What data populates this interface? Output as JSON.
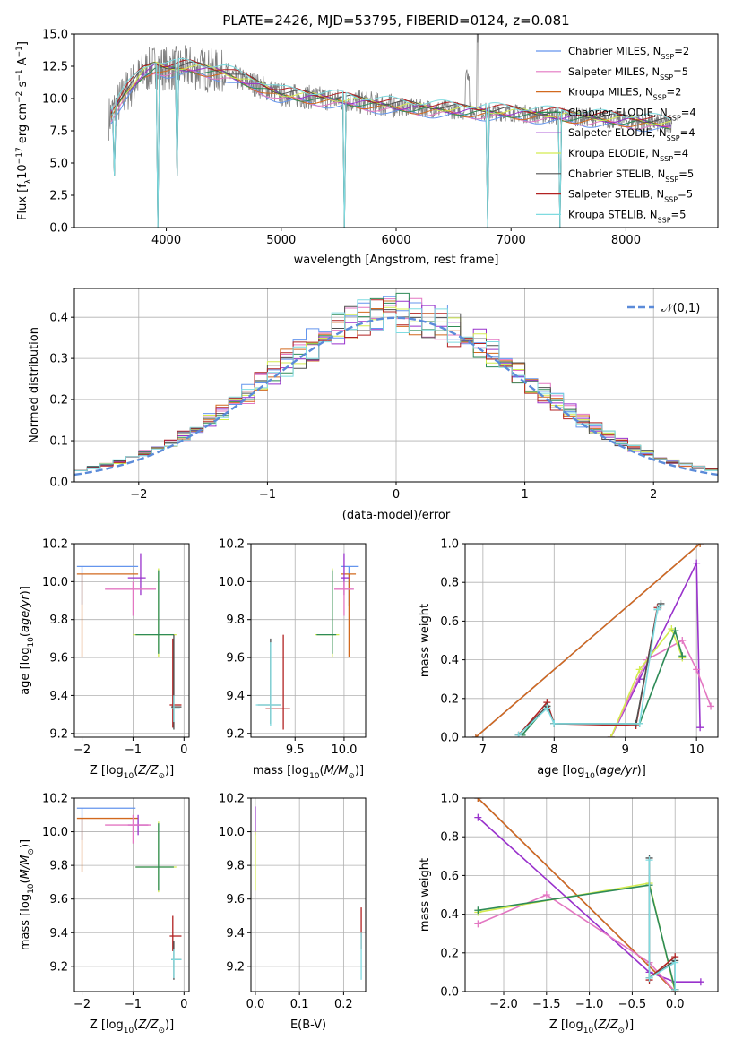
{
  "figure_title": "PLATE=2426, MJD=53795, FIBERID=0124, z=0.081",
  "series_styles": [
    {
      "name": "Chabrier MILES, N_SSP=2",
      "color": "#6495ed"
    },
    {
      "name": "Salpeter MILES, N_SSP=5",
      "color": "#e377c2"
    },
    {
      "name": "Kroupa MILES, N_SSP=2",
      "color": "#d2691e"
    },
    {
      "name": "Chabrier ELODIE, N_SSP=4",
      "color": "#2e8b57"
    },
    {
      "name": "Salpeter ELODIE, N_SSP=4",
      "color": "#9932cc"
    },
    {
      "name": "Kroupa ELODIE, N_SSP=4",
      "color": "#d4ec50"
    },
    {
      "name": "Chabrier STELIB, N_SSP=5",
      "color": "#505050"
    },
    {
      "name": "Salpeter STELIB, N_SSP=5",
      "color": "#b22222"
    },
    {
      "name": "Kroupa STELIB, N_SSP=5",
      "color": "#7fdbe0"
    }
  ],
  "data_color": "#808080",
  "chart_data": [
    {
      "type": "line",
      "title": "PLATE=2426, MJD=53795, FIBERID=0124, z=0.081",
      "xlabel": "wavelength [Angstrom, rest frame]",
      "ylabel": "Flux [f_λ 10^-17 erg cm^-2 s^-1 A^-1]",
      "xlim": [
        3200,
        8800
      ],
      "ylim": [
        0,
        15
      ],
      "xticks": [
        4000,
        5000,
        6000,
        7000,
        8000
      ],
      "yticks": [
        0.0,
        2.5,
        5.0,
        7.5,
        10.0,
        12.5,
        15.0
      ],
      "legend_position": "right",
      "legend": [
        "Chabrier MILES, N_SSP=2",
        "Salpeter MILES, N_SSP=5",
        "Kroupa MILES, N_SSP=2",
        "Chabrier ELODIE, N_SSP=4",
        "Salpeter ELODIE, N_SSP=4",
        "Kroupa ELODIE, N_SSP=4",
        "Chabrier STELIB, N_SSP=5",
        "Salpeter STELIB, N_SSP=5",
        "Kroupa STELIB, N_SSP=5"
      ],
      "continuum": {
        "x": [
          3500,
          3650,
          3800,
          3900,
          4000,
          4200,
          4500,
          4800,
          5000,
          5500,
          6000,
          6500,
          7000,
          7500,
          8000,
          8400
        ],
        "y": [
          8.5,
          10.5,
          12.0,
          12.5,
          12.3,
          12.4,
          12.0,
          11.0,
          10.3,
          9.9,
          9.4,
          9.1,
          8.9,
          8.6,
          8.3,
          8.0
        ]
      }
    },
    {
      "type": "line",
      "xlabel": "(data-model)/error",
      "ylabel": "Normed distribution",
      "xlim": [
        -2.5,
        2.5
      ],
      "ylim": [
        0,
        0.47
      ],
      "xticks": [
        -2,
        -1,
        0,
        1,
        2
      ],
      "yticks": [
        0.0,
        0.1,
        0.2,
        0.3,
        0.4
      ],
      "legend": [
        "𝒩(0,1)"
      ],
      "legend_position": "top-right",
      "reference_curve": {
        "name": "𝒩(0,1)",
        "mean": 0,
        "sigma": 1,
        "style": "dashed",
        "color": "#5b8bd9"
      },
      "bins": {
        "min": -2.5,
        "max": 2.5,
        "width": 0.1
      }
    },
    {
      "type": "scatter",
      "xlabel": "Z [log10(Z/Z⊙)]",
      "ylabel": "age  [log10(age/yr)]",
      "xlim": [
        -2.15,
        0.1
      ],
      "ylim": [
        9.18,
        10.2
      ],
      "xticks": [
        -2,
        -1,
        0
      ],
      "yticks": [
        9.2,
        9.4,
        9.6,
        9.8,
        10.0,
        10.2
      ],
      "points": [
        {
          "s": 0,
          "x": -2.0,
          "y": 10.08,
          "ex": [
            -2.1,
            -0.9
          ],
          "ey": [
            9.88,
            10.08
          ]
        },
        {
          "s": 2,
          "x": -2.0,
          "y": 10.04,
          "ex": [
            -2.1,
            -0.9
          ],
          "ey": [
            9.6,
            10.04
          ]
        },
        {
          "s": 4,
          "x": -0.85,
          "y": 10.02,
          "ex": [
            -1.1,
            -0.75
          ],
          "ey": [
            9.93,
            10.15
          ]
        },
        {
          "s": 1,
          "x": -1.0,
          "y": 9.96,
          "ex": [
            -1.55,
            -0.55
          ],
          "ey": [
            9.82,
            10.0
          ]
        },
        {
          "s": 5,
          "x": -0.5,
          "y": 9.72,
          "ex": [
            -1.0,
            -0.15
          ],
          "ey": [
            9.6,
            10.07
          ]
        },
        {
          "s": 3,
          "x": -0.5,
          "y": 9.72,
          "ex": [
            -0.95,
            -0.2
          ],
          "ey": [
            9.62,
            10.06
          ]
        },
        {
          "s": 7,
          "x": -0.22,
          "y": 9.35,
          "ex": [
            -0.28,
            -0.05
          ],
          "ey": [
            9.23,
            9.7
          ]
        },
        {
          "s": 6,
          "x": -0.2,
          "y": 9.34,
          "ex": [
            -0.25,
            -0.05
          ],
          "ey": [
            9.22,
            9.72
          ]
        },
        {
          "s": 8,
          "x": -0.2,
          "y": 9.33,
          "ex": [
            -0.25,
            -0.08
          ],
          "ey": [
            9.26,
            9.4
          ]
        }
      ]
    },
    {
      "type": "scatter",
      "xlabel": "mass [log10(M/M⊙)]",
      "ylabel": "",
      "xlim": [
        9.05,
        10.22
      ],
      "ylim": [
        9.18,
        10.2
      ],
      "xticks": [
        9.5,
        10.0
      ],
      "yticks": [
        9.2,
        9.4,
        9.6,
        9.8,
        10.0,
        10.2
      ],
      "points": [
        {
          "s": 0,
          "x": 10.05,
          "y": 10.08,
          "ex": [
            9.97,
            10.15
          ],
          "ey": [
            9.87,
            10.08
          ]
        },
        {
          "s": 2,
          "x": 10.05,
          "y": 10.04,
          "ex": [
            9.97,
            10.12
          ],
          "ey": [
            9.6,
            10.04
          ]
        },
        {
          "s": 4,
          "x": 10.0,
          "y": 10.02,
          "ex": [
            9.97,
            10.05
          ],
          "ey": [
            9.93,
            10.15
          ]
        },
        {
          "s": 1,
          "x": 10.0,
          "y": 9.96,
          "ex": [
            9.9,
            10.1
          ],
          "ey": [
            9.82,
            10.0
          ]
        },
        {
          "s": 5,
          "x": 9.88,
          "y": 9.72,
          "ex": [
            9.7,
            9.95
          ],
          "ey": [
            9.6,
            10.07
          ]
        },
        {
          "s": 3,
          "x": 9.88,
          "y": 9.72,
          "ex": [
            9.72,
            9.92
          ],
          "ey": [
            9.62,
            10.06
          ]
        },
        {
          "s": 7,
          "x": 9.38,
          "y": 9.33,
          "ex": [
            9.2,
            9.45
          ],
          "ey": [
            9.22,
            9.72
          ]
        },
        {
          "s": 6,
          "x": 9.25,
          "y": 9.35,
          "ex": [
            9.12,
            9.35
          ],
          "ey": [
            9.25,
            9.7
          ]
        },
        {
          "s": 8,
          "x": 9.25,
          "y": 9.35,
          "ex": [
            9.1,
            9.35
          ],
          "ey": [
            9.24,
            9.68
          ]
        }
      ]
    },
    {
      "type": "line",
      "xlabel": "age  [log10(age/yr)]",
      "ylabel": "mass weight",
      "xlim": [
        6.75,
        10.3
      ],
      "ylim": [
        0,
        1.0
      ],
      "xticks": [
        7,
        8,
        9,
        10
      ],
      "yticks": [
        0.0,
        0.2,
        0.4,
        0.6,
        0.8,
        1.0
      ],
      "series": [
        {
          "s": 0,
          "x": [
            6.9,
            10.05
          ],
          "y": [
            0.0,
            1.0
          ]
        },
        {
          "s": 2,
          "x": [
            6.9,
            10.05
          ],
          "y": [
            0.0,
            1.0
          ]
        },
        {
          "s": 4,
          "x": [
            8.8,
            9.2,
            10.0,
            10.05
          ],
          "y": [
            0.0,
            0.3,
            0.9,
            0.05
          ]
        },
        {
          "s": 1,
          "x": [
            8.8,
            9.3,
            9.8,
            10.0,
            10.2
          ],
          "y": [
            0.0,
            0.4,
            0.5,
            0.35,
            0.16
          ]
        },
        {
          "s": 5,
          "x": [
            8.8,
            9.2,
            9.65,
            9.8
          ],
          "y": [
            0.0,
            0.35,
            0.56,
            0.41
          ]
        },
        {
          "s": 3,
          "x": [
            7.55,
            7.9,
            8.0,
            9.2,
            9.7,
            9.8
          ],
          "y": [
            0.01,
            0.16,
            0.07,
            0.07,
            0.55,
            0.42
          ]
        },
        {
          "s": 7,
          "x": [
            7.5,
            7.9,
            8.0,
            9.15,
            9.45,
            9.5
          ],
          "y": [
            0.01,
            0.18,
            0.07,
            0.06,
            0.67,
            0.68
          ]
        },
        {
          "s": 6,
          "x": [
            7.5,
            7.9,
            8.0,
            9.15,
            9.45,
            9.5
          ],
          "y": [
            0.01,
            0.16,
            0.07,
            0.07,
            0.66,
            0.69
          ]
        },
        {
          "s": 8,
          "x": [
            7.5,
            7.9,
            8.0,
            9.2,
            9.45,
            9.5
          ],
          "y": [
            0.01,
            0.15,
            0.07,
            0.07,
            0.66,
            0.68
          ]
        }
      ]
    },
    {
      "type": "scatter",
      "xlabel": "Z [log10(Z/Z⊙)]",
      "ylabel": "mass [log10(M/M⊙)]",
      "xlim": [
        -2.15,
        0.1
      ],
      "ylim": [
        9.05,
        10.2
      ],
      "xticks": [
        -2,
        -1,
        0
      ],
      "yticks": [
        9.2,
        9.4,
        9.6,
        9.8,
        10.0,
        10.2
      ],
      "points": [
        {
          "s": 0,
          "x": -2.0,
          "y": 10.14,
          "ex": [
            -2.1,
            -0.95
          ],
          "ey": [
            9.95,
            10.14
          ]
        },
        {
          "s": 2,
          "x": -2.0,
          "y": 10.08,
          "ex": [
            -2.1,
            -0.9
          ],
          "ey": [
            9.76,
            10.08
          ]
        },
        {
          "s": 4,
          "x": -0.9,
          "y": 10.04,
          "ex": [
            -1.1,
            -0.7
          ],
          "ey": [
            9.98,
            10.1
          ]
        },
        {
          "s": 1,
          "x": -1.0,
          "y": 10.04,
          "ex": [
            -1.55,
            -0.65
          ],
          "ey": [
            9.93,
            10.1
          ]
        },
        {
          "s": 5,
          "x": -0.5,
          "y": 9.79,
          "ex": [
            -0.95,
            -0.15
          ],
          "ey": [
            9.64,
            10.06
          ]
        },
        {
          "s": 3,
          "x": -0.5,
          "y": 9.79,
          "ex": [
            -0.95,
            -0.2
          ],
          "ey": [
            9.65,
            10.05
          ]
        },
        {
          "s": 7,
          "x": -0.22,
          "y": 9.38,
          "ex": [
            -0.28,
            -0.05
          ],
          "ey": [
            9.29,
            9.5
          ]
        },
        {
          "s": 6,
          "x": -0.2,
          "y": 9.24,
          "ex": [
            -0.25,
            -0.05
          ],
          "ey": [
            9.12,
            9.35
          ]
        },
        {
          "s": 8,
          "x": -0.2,
          "y": 9.24,
          "ex": [
            -0.25,
            -0.05
          ],
          "ey": [
            9.13,
            9.3
          ]
        }
      ]
    },
    {
      "type": "scatter",
      "xlabel": "E(B-V)",
      "ylabel": "",
      "xlim": [
        -0.01,
        0.25
      ],
      "ylim": [
        9.05,
        10.2
      ],
      "xticks": [
        0.0,
        0.1,
        0.2
      ],
      "yticks": [
        9.2,
        9.4,
        9.6,
        9.8,
        10.0,
        10.2
      ],
      "points": [
        {
          "s": 4,
          "x": 0.0,
          "y": 10.05,
          "ex": [
            0.0,
            0.0
          ],
          "ey": [
            9.98,
            10.15
          ]
        },
        {
          "s": 5,
          "x": 0.0,
          "y": 9.8,
          "ex": [
            0.0,
            0.0
          ],
          "ey": [
            9.65,
            10.0
          ]
        },
        {
          "s": 7,
          "x": 0.24,
          "y": 9.4,
          "ex": [
            0.24,
            0.24
          ],
          "ey": [
            9.3,
            9.55
          ]
        },
        {
          "s": 8,
          "x": 0.24,
          "y": 9.25,
          "ex": [
            0.24,
            0.24
          ],
          "ey": [
            9.12,
            9.4
          ]
        }
      ]
    },
    {
      "type": "line",
      "xlabel": "Z [log10(Z/Z⊙)]",
      "ylabel": "mass weight",
      "xlim": [
        -2.45,
        0.5
      ],
      "ylim": [
        0,
        1.0
      ],
      "xticks": [
        -2.0,
        -1.5,
        -1.0,
        -0.5,
        0.0
      ],
      "yticks": [
        0.0,
        0.2,
        0.4,
        0.6,
        0.8,
        1.0
      ],
      "series": [
        {
          "s": 0,
          "x": [
            -2.3,
            0.0
          ],
          "y": [
            1.0,
            0.0
          ]
        },
        {
          "s": 2,
          "x": [
            -2.3,
            0.0
          ],
          "y": [
            1.0,
            0.0
          ]
        },
        {
          "s": 4,
          "x": [
            -2.3,
            -0.3,
            0.0,
            0.3
          ],
          "y": [
            0.9,
            0.1,
            0.05,
            0.05
          ]
        },
        {
          "s": 1,
          "x": [
            -2.3,
            -1.5,
            -0.3,
            0.0
          ],
          "y": [
            0.35,
            0.5,
            0.15,
            0.0
          ]
        },
        {
          "s": 5,
          "x": [
            -2.3,
            -0.3,
            0.0
          ],
          "y": [
            0.41,
            0.56,
            0.0
          ]
        },
        {
          "s": 3,
          "x": [
            -2.3,
            -0.3,
            0.0
          ],
          "y": [
            0.42,
            0.55,
            0.01
          ]
        },
        {
          "s": 7,
          "x": [
            -0.3,
            -0.3,
            0.0,
            0.0
          ],
          "y": [
            0.06,
            0.07,
            0.18,
            0.01
          ]
        },
        {
          "s": 6,
          "x": [
            -0.3,
            -0.3,
            0.0,
            0.0
          ],
          "y": [
            0.69,
            0.07,
            0.16,
            0.01
          ]
        },
        {
          "s": 8,
          "x": [
            -0.3,
            -0.3,
            0.0,
            0.0
          ],
          "y": [
            0.68,
            0.07,
            0.15,
            0.01
          ]
        }
      ]
    }
  ]
}
